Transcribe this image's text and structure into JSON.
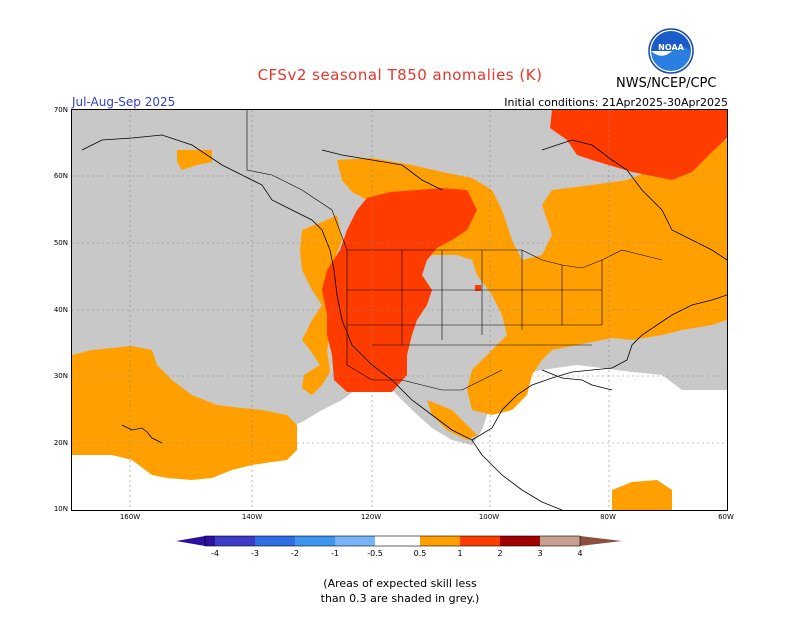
{
  "title": "CFSv2 seasonal T850 anomalies (K)",
  "season": "Jul-Aug-Sep 2025",
  "initial_conditions": "Initial conditions: 21Apr2025-30Apr2025",
  "agency": "NWS/NCEP/CPC",
  "logo_text": "NOAA",
  "lat_labels": [
    "70N",
    "60N",
    "50N",
    "40N",
    "30N",
    "20N",
    "10N"
  ],
  "lon_labels": [
    "160W",
    "140W",
    "120W",
    "100W",
    "80W",
    "60W"
  ],
  "legend": {
    "labels": [
      "-4",
      "-3",
      "-2",
      "-1",
      "-0.5",
      "0.5",
      "1",
      "2",
      "3",
      "4"
    ],
    "colors": {
      "lt_m4": "#2d10a0",
      "m4_m3": "#3c3cc8",
      "m3_m2": "#2d6ee6",
      "m2_m1": "#3c96f0",
      "m1_m05": "#78b4f5",
      "neutral": "#ffffff",
      "p05_1": "#ffa000",
      "p1_2": "#ff3c00",
      "p2_3": "#a00000",
      "p3_4": "#c8a090",
      "gt_4": "#8c5040"
    }
  },
  "colors": {
    "grey_low_skill": "#c8c8c8",
    "anomaly_05_1": "#ffa000",
    "anomaly_1_2": "#ff3c00",
    "no_anomaly": "#ffffff",
    "title": "#e8352b",
    "season": "#3040c8"
  },
  "note_line1": "(Areas of expected skill less",
  "note_line2": "than 0.3 are shaded in grey.)"
}
